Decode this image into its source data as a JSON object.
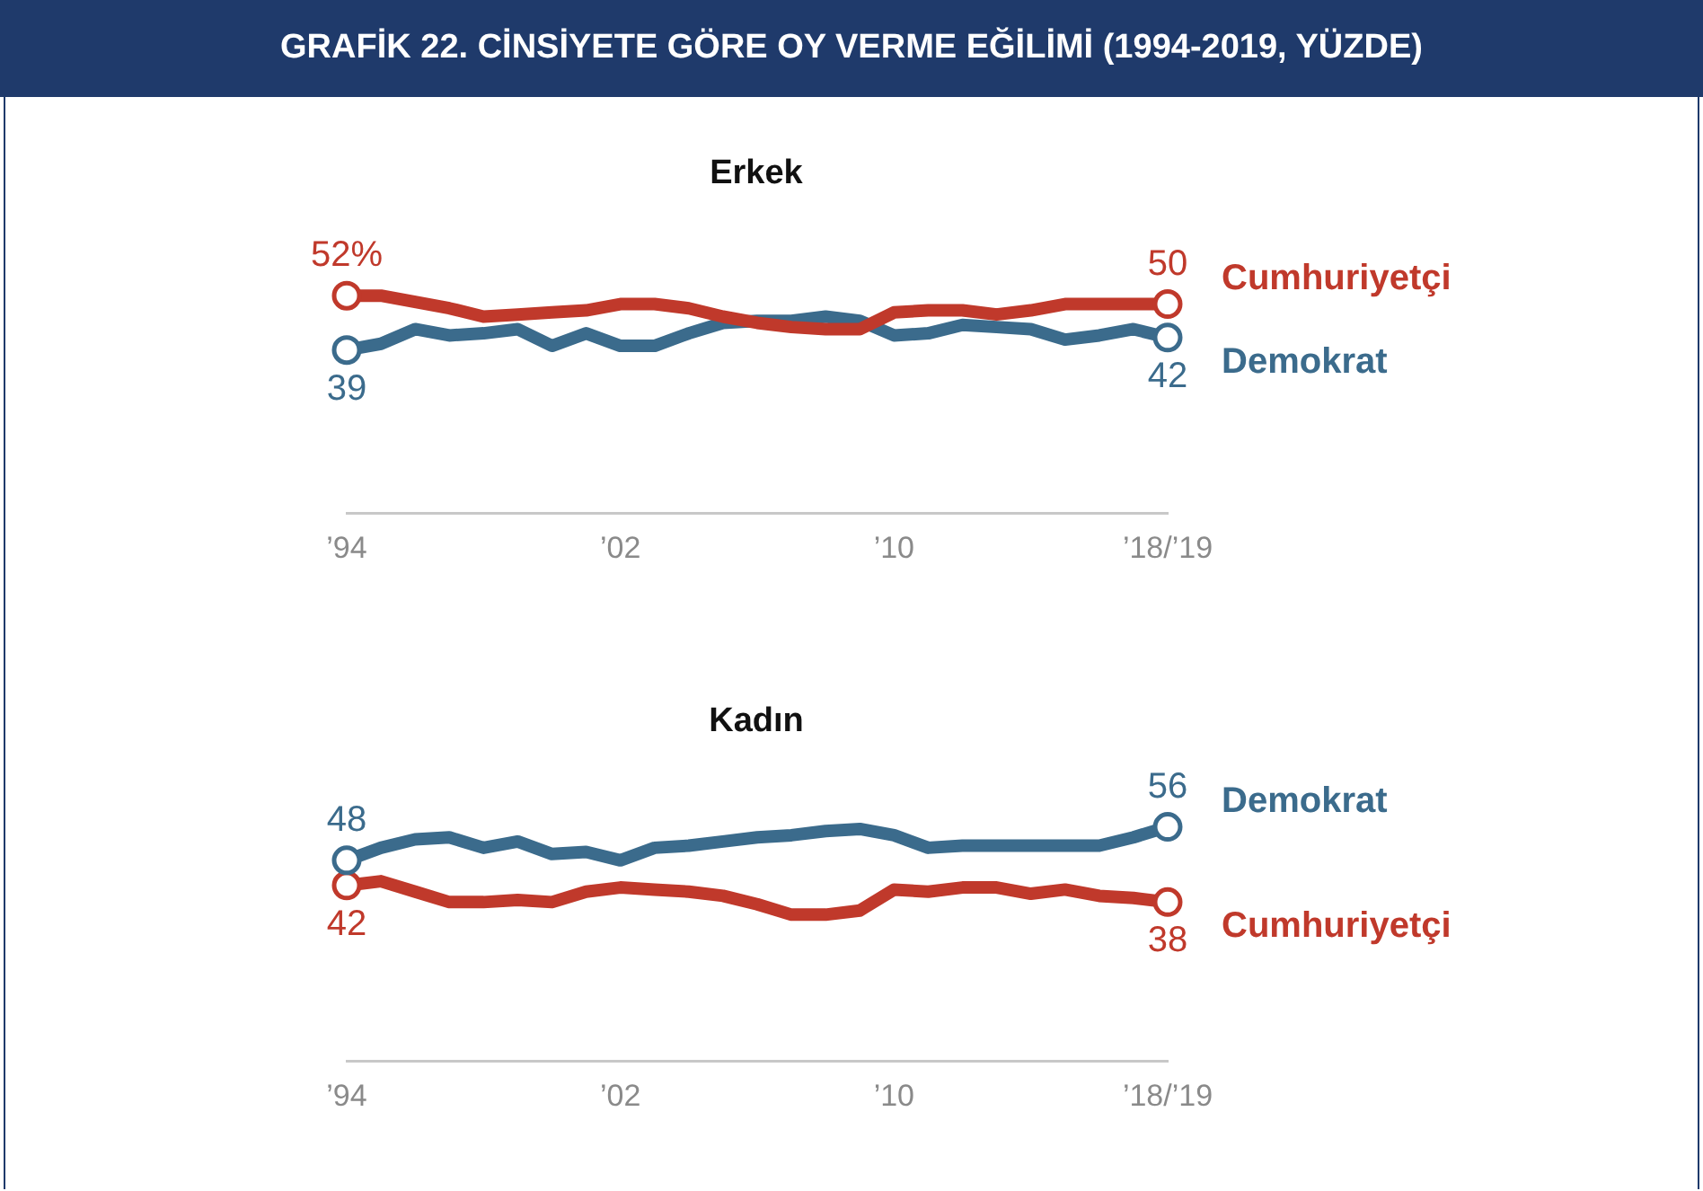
{
  "chart_data": [
    {
      "type": "line",
      "title": "GRAFİK 22. CİNSİYETE GÖRE OY VERME EĞİLİMİ (1994-2019, YÜZDE)",
      "subtitle": "Erkek",
      "x": [
        1994,
        1995,
        1996,
        1997,
        1998,
        1999,
        2000,
        2001,
        2002,
        2003,
        2004,
        2005,
        2006,
        2007,
        2008,
        2009,
        2010,
        2011,
        2012,
        2013,
        2014,
        2015,
        2016,
        2017,
        2018
      ],
      "xlim": [
        1994,
        2018
      ],
      "xticks": [
        {
          "value": 1994,
          "label": "’94"
        },
        {
          "value": 2002,
          "label": "’02"
        },
        {
          "value": 2010,
          "label": "’10"
        },
        {
          "value": 2018,
          "label": "’18/’19"
        }
      ],
      "tick_labels": "x",
      "series": [
        {
          "name": "Cumhuriyetçi",
          "color": "#c0392b",
          "values": [
            52,
            52,
            50.5,
            49,
            47,
            47.5,
            48,
            48.5,
            50,
            50,
            49,
            47,
            45.5,
            44.5,
            44,
            44,
            48,
            48.5,
            48.5,
            47.5,
            48.5,
            50,
            50,
            50,
            50
          ],
          "value_labels": [
            "52%",
            null,
            null,
            null,
            null,
            null,
            null,
            null,
            null,
            null,
            null,
            null,
            null,
            null,
            null,
            null,
            null,
            null,
            null,
            null,
            null,
            null,
            null,
            null,
            "50"
          ]
        },
        {
          "name": "Demokrat",
          "color": "#3b6b8c",
          "values": [
            39,
            40.5,
            44,
            42.5,
            43,
            44,
            40,
            43,
            40,
            40,
            43,
            45.5,
            46,
            46,
            47,
            46,
            42.5,
            43,
            45,
            44.5,
            44,
            41.5,
            42.5,
            44,
            42
          ],
          "value_labels": [
            "39",
            null,
            null,
            null,
            null,
            null,
            null,
            null,
            null,
            null,
            null,
            null,
            null,
            null,
            null,
            null,
            null,
            null,
            null,
            null,
            null,
            null,
            null,
            null,
            "42"
          ]
        }
      ]
    },
    {
      "type": "line",
      "title": "Kadın",
      "x": [
        1994,
        1995,
        1996,
        1997,
        1998,
        1999,
        2000,
        2001,
        2002,
        2003,
        2004,
        2005,
        2006,
        2007,
        2008,
        2009,
        2010,
        2011,
        2012,
        2013,
        2014,
        2015,
        2016,
        2017,
        2018
      ],
      "xlim": [
        1994,
        2018
      ],
      "xticks": [
        {
          "value": 1994,
          "label": "’94"
        },
        {
          "value": 2002,
          "label": "’02"
        },
        {
          "value": 2010,
          "label": "’10"
        },
        {
          "value": 2018,
          "label": "’18/’19"
        }
      ],
      "tick_labels": "x",
      "series": [
        {
          "name": "Demokrat",
          "color": "#3b6b8c",
          "values": [
            48,
            51,
            53,
            53.5,
            51,
            52.5,
            49.5,
            50,
            48,
            51,
            51.5,
            52.5,
            53.5,
            54,
            55,
            55.5,
            54,
            51,
            51.5,
            51.5,
            51.5,
            51.5,
            51.5,
            53.5,
            56
          ],
          "value_labels": [
            "48",
            null,
            null,
            null,
            null,
            null,
            null,
            null,
            null,
            null,
            null,
            null,
            null,
            null,
            null,
            null,
            null,
            null,
            null,
            null,
            null,
            null,
            null,
            null,
            "56"
          ]
        },
        {
          "name": "Cumhuriyetçi",
          "color": "#c0392b",
          "values": [
            42,
            43,
            40.5,
            38,
            38,
            38.5,
            38,
            40.5,
            41.5,
            41,
            40.5,
            39.5,
            37.5,
            35,
            35,
            36,
            41,
            40.5,
            41.5,
            41.5,
            40,
            41,
            39.5,
            39,
            38
          ],
          "value_labels": [
            "42",
            null,
            null,
            null,
            null,
            null,
            null,
            null,
            null,
            null,
            null,
            null,
            null,
            null,
            null,
            null,
            null,
            null,
            null,
            null,
            null,
            null,
            null,
            null,
            "38"
          ]
        }
      ]
    }
  ]
}
